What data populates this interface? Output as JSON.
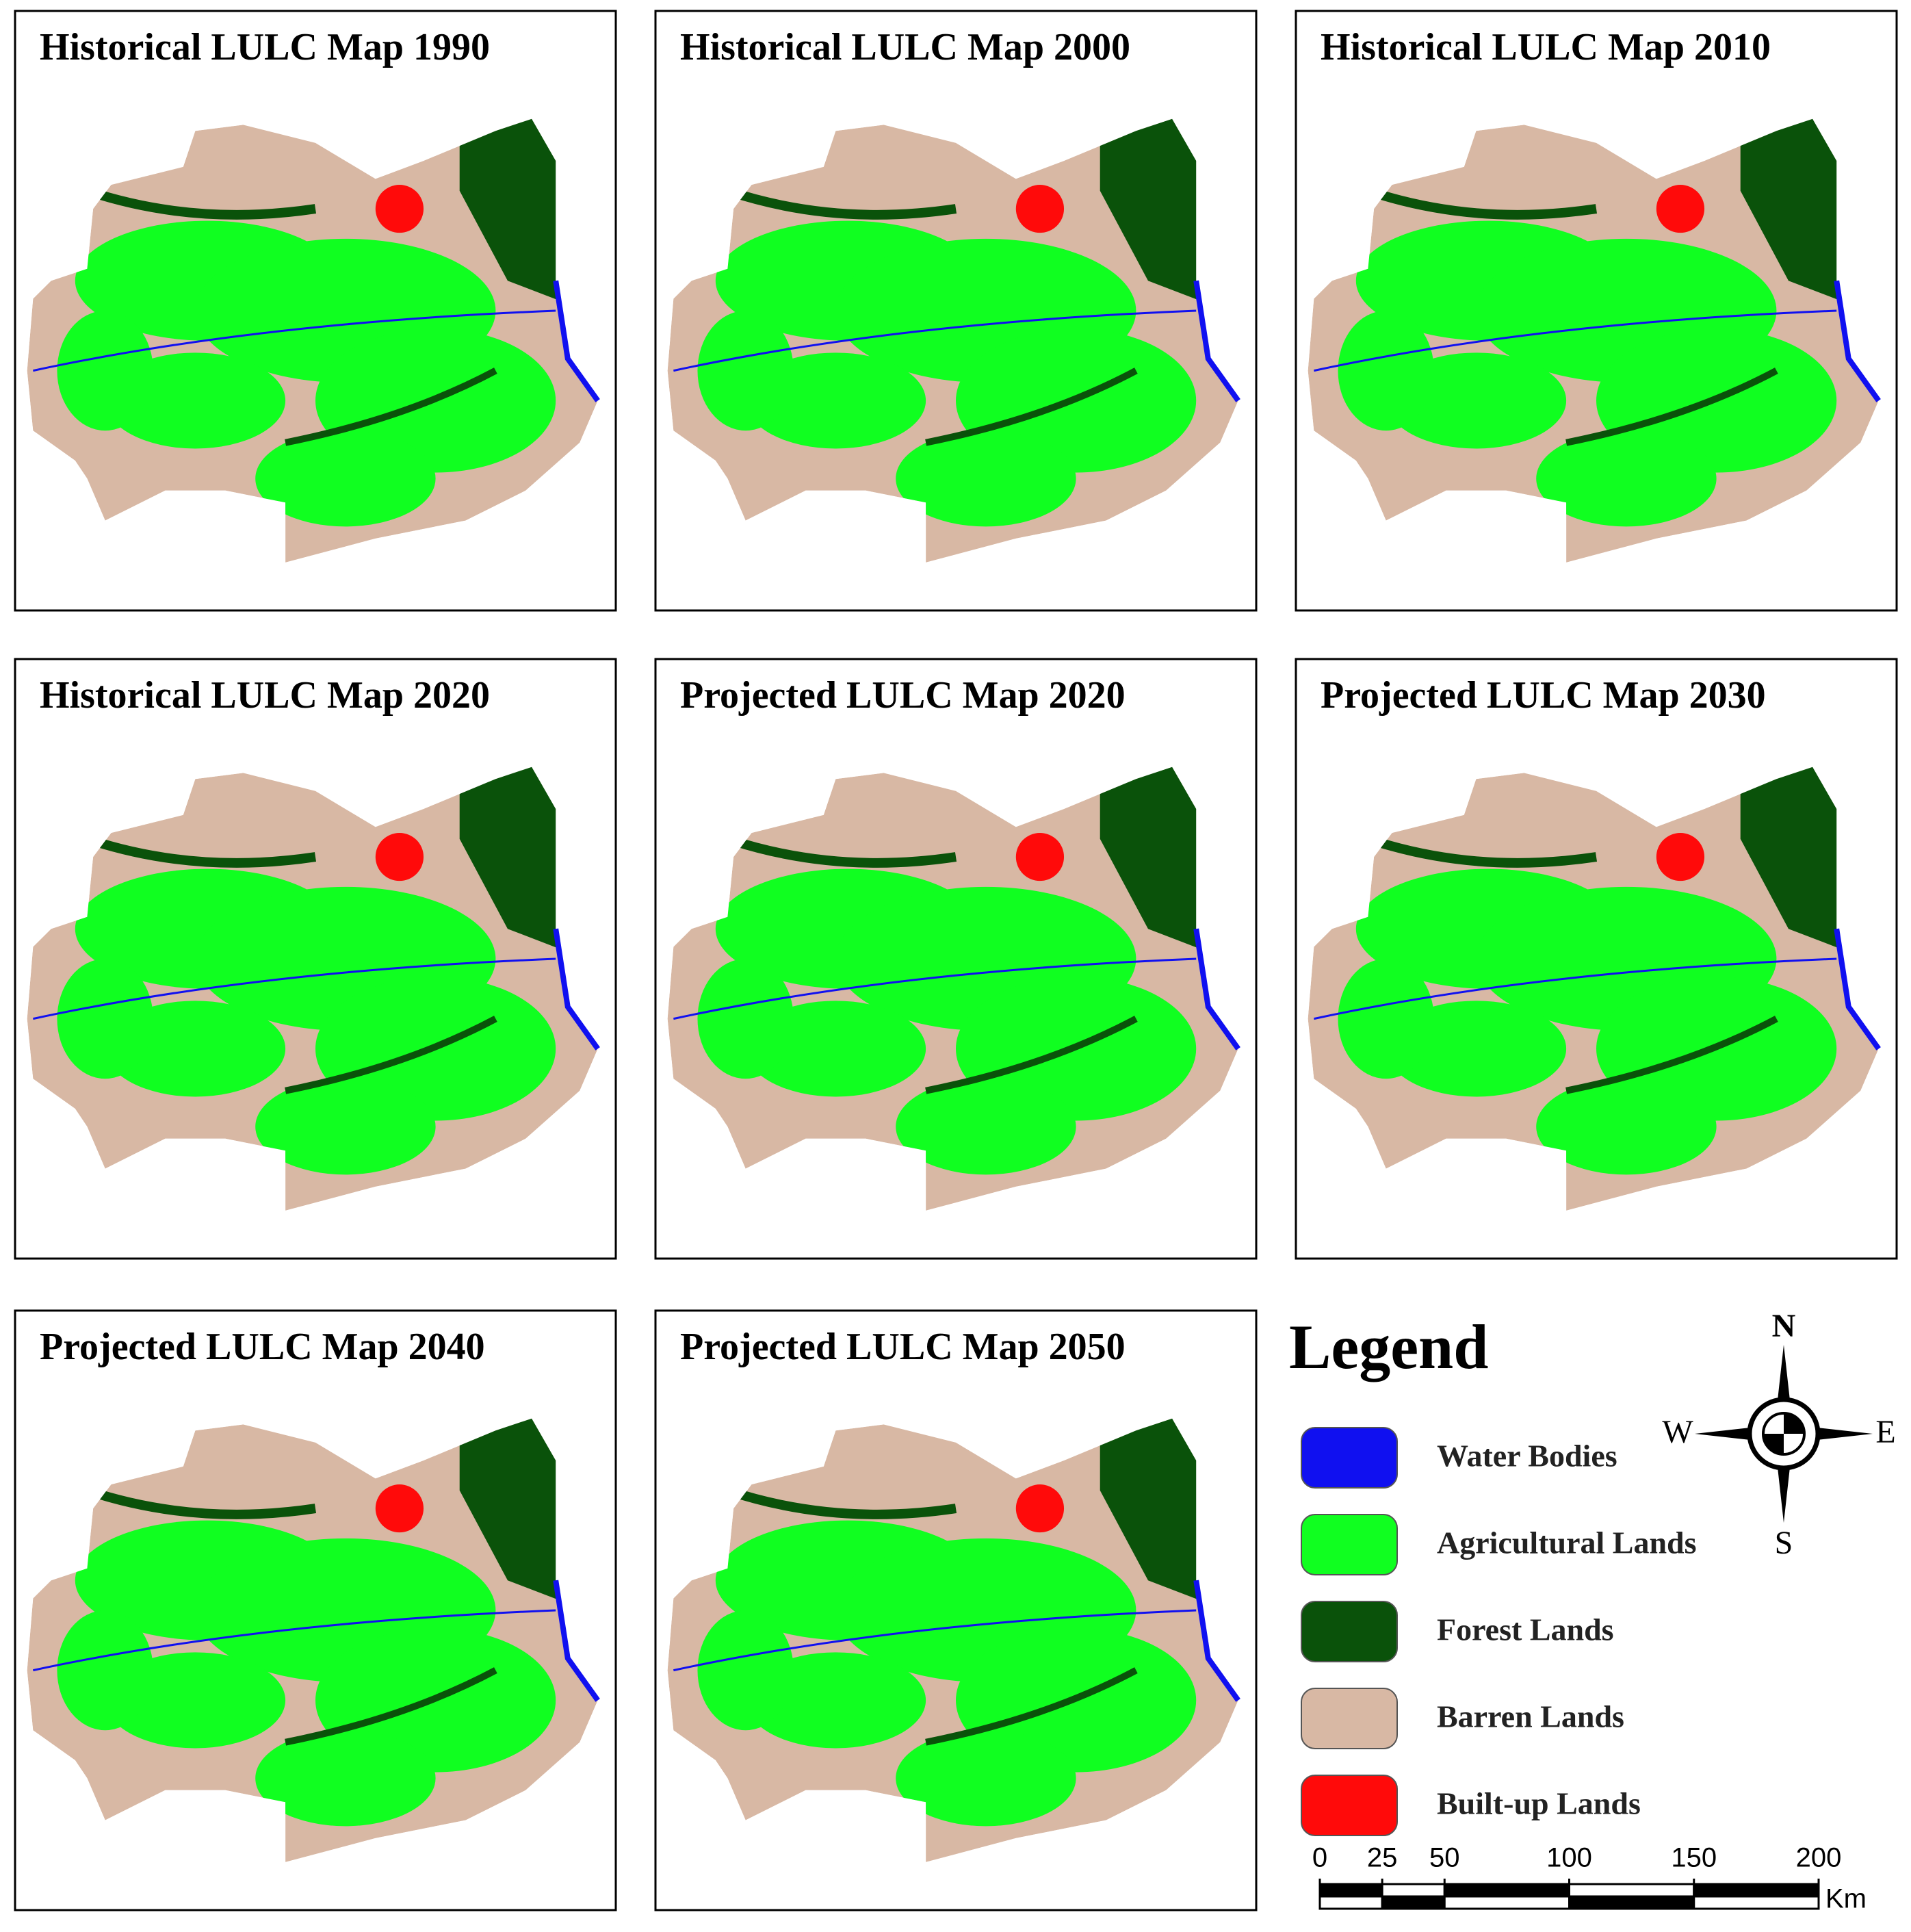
{
  "panels": [
    {
      "title": "Historical LULC Map 1990"
    },
    {
      "title": "Historical LULC Map 2000"
    },
    {
      "title": "Historical LULC Map 2010"
    },
    {
      "title": "Historical LULC Map 2020"
    },
    {
      "title": "Projected LULC Map 2020"
    },
    {
      "title": "Projected LULC Map 2030"
    },
    {
      "title": "Projected LULC Map 2040"
    },
    {
      "title": "Projected LULC Map 2050"
    }
  ],
  "legend": {
    "title": "Legend",
    "items": [
      {
        "label": "Water Bodies",
        "color": "#1010f0"
      },
      {
        "label": "Agricultural Lands",
        "color": "#10ff20"
      },
      {
        "label": "Forest Lands",
        "color": "#0a520a"
      },
      {
        "label": "Barren Lands",
        "color": "#d8b8a4"
      },
      {
        "label": "Built-up Lands",
        "color": "#ff0a0a"
      }
    ]
  },
  "compass": {
    "north": "N",
    "south": "S",
    "east": "E",
    "west": "W"
  },
  "scale_bar": {
    "ticks": [
      0,
      25,
      50,
      100,
      150,
      200
    ],
    "unit": "Km"
  }
}
